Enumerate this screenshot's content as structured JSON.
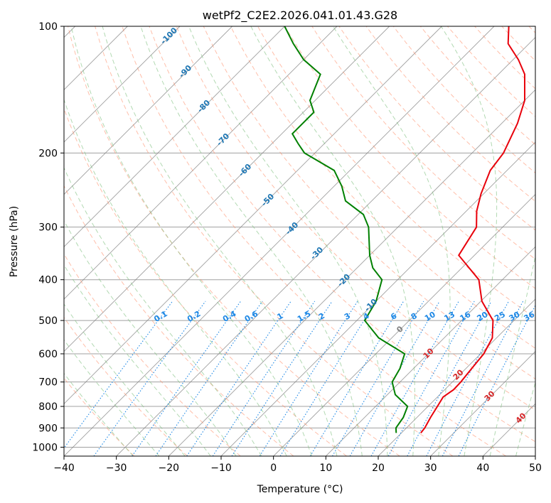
{
  "chart_data": {
    "type": "line",
    "title": "wetPf2_C2E2.2026.041.01.43.G28",
    "xlabel": "Temperature (°C)",
    "ylabel": "Pressure (hPa)",
    "xlim": [
      -40,
      50
    ],
    "ylim": [
      1050,
      100
    ],
    "x_ticks": [
      "−40",
      "−30",
      "−20",
      "−10",
      "0",
      "10",
      "20",
      "30",
      "40",
      "50"
    ],
    "x_tick_values": [
      -40,
      -30,
      -20,
      -10,
      0,
      10,
      20,
      30,
      40,
      50
    ],
    "y_ticks": [
      "100",
      "200",
      "300",
      "400",
      "500",
      "600",
      "700",
      "800",
      "900",
      "1000"
    ],
    "y_tick_values": [
      100,
      200,
      300,
      400,
      500,
      600,
      700,
      800,
      900,
      1000
    ],
    "series": [
      {
        "name": "temperature",
        "color": "#e8000b",
        "points": [
          [
            23.7,
            925
          ],
          [
            23.5,
            900
          ],
          [
            22.6,
            850
          ],
          [
            21.8,
            800
          ],
          [
            21.1,
            760
          ],
          [
            21.7,
            730
          ],
          [
            21.6,
            700
          ],
          [
            21.1,
            650
          ],
          [
            20.6,
            600
          ],
          [
            19.2,
            550
          ],
          [
            16.0,
            500
          ],
          [
            10.2,
            450
          ],
          [
            5.5,
            400
          ],
          [
            -3.0,
            350
          ],
          [
            -5.0,
            300
          ],
          [
            -8.0,
            275
          ],
          [
            -10.5,
            250
          ],
          [
            -13.2,
            220
          ],
          [
            -14.0,
            200
          ],
          [
            -17.0,
            170
          ],
          [
            -20.0,
            150
          ],
          [
            -25.0,
            130
          ],
          [
            -29.0,
            120
          ],
          [
            -34.0,
            110
          ],
          [
            -37.2,
            100
          ]
        ]
      },
      {
        "name": "dewpoint",
        "color": "#008000",
        "points": [
          [
            19.0,
            925
          ],
          [
            18.0,
            900
          ],
          [
            17.4,
            850
          ],
          [
            16.1,
            800
          ],
          [
            11.5,
            750
          ],
          [
            8.5,
            700
          ],
          [
            7.4,
            650
          ],
          [
            5.5,
            600
          ],
          [
            -2.5,
            550
          ],
          [
            -8.5,
            500
          ],
          [
            -10.0,
            450
          ],
          [
            -13.0,
            400
          ],
          [
            -17.0,
            375
          ],
          [
            -20.0,
            350
          ],
          [
            -25.6,
            300
          ],
          [
            -29.0,
            280
          ],
          [
            -35.0,
            260
          ],
          [
            -38.5,
            240
          ],
          [
            -43.0,
            220
          ],
          [
            -52.0,
            200
          ],
          [
            -55.0,
            190
          ],
          [
            -58.0,
            180
          ],
          [
            -58.0,
            160
          ],
          [
            -61.0,
            150
          ],
          [
            -64.0,
            130
          ],
          [
            -70.0,
            120
          ],
          [
            -75.0,
            110
          ],
          [
            -80.0,
            100
          ]
        ]
      }
    ],
    "dry_adiabat_labels": [
      "-100",
      "-90",
      "-80",
      "-70",
      "-60",
      "-50",
      "-40",
      "-30",
      "-20",
      "-10"
    ],
    "moist_adiabat_labels": [
      "0",
      "10",
      "20",
      "30",
      "40"
    ],
    "mixing_ratio_labels": [
      "0.1",
      "0.2",
      "0.4",
      "0.6",
      "1",
      "1.5",
      "2",
      "3",
      "4",
      "6",
      "8",
      "10",
      "13",
      "16",
      "20",
      "25",
      "30",
      "36"
    ],
    "mixing_ratio_values": [
      0.1,
      0.2,
      0.4,
      0.6,
      1,
      1.5,
      2,
      3,
      4,
      6,
      8,
      10,
      13,
      16,
      20,
      25,
      30,
      36
    ],
    "colors": {
      "temperature": "#e8000b",
      "dewpoint": "#008000",
      "dry_adiabats": "#ff8a65",
      "moist_adiabats": "#7fbf7f",
      "mixing_ratio": "#1e88e5",
      "isotherms": "#808080",
      "isobars": "#a0a0a0",
      "dry_label": "#1f77b4",
      "moist_label": "#d62728"
    }
  }
}
